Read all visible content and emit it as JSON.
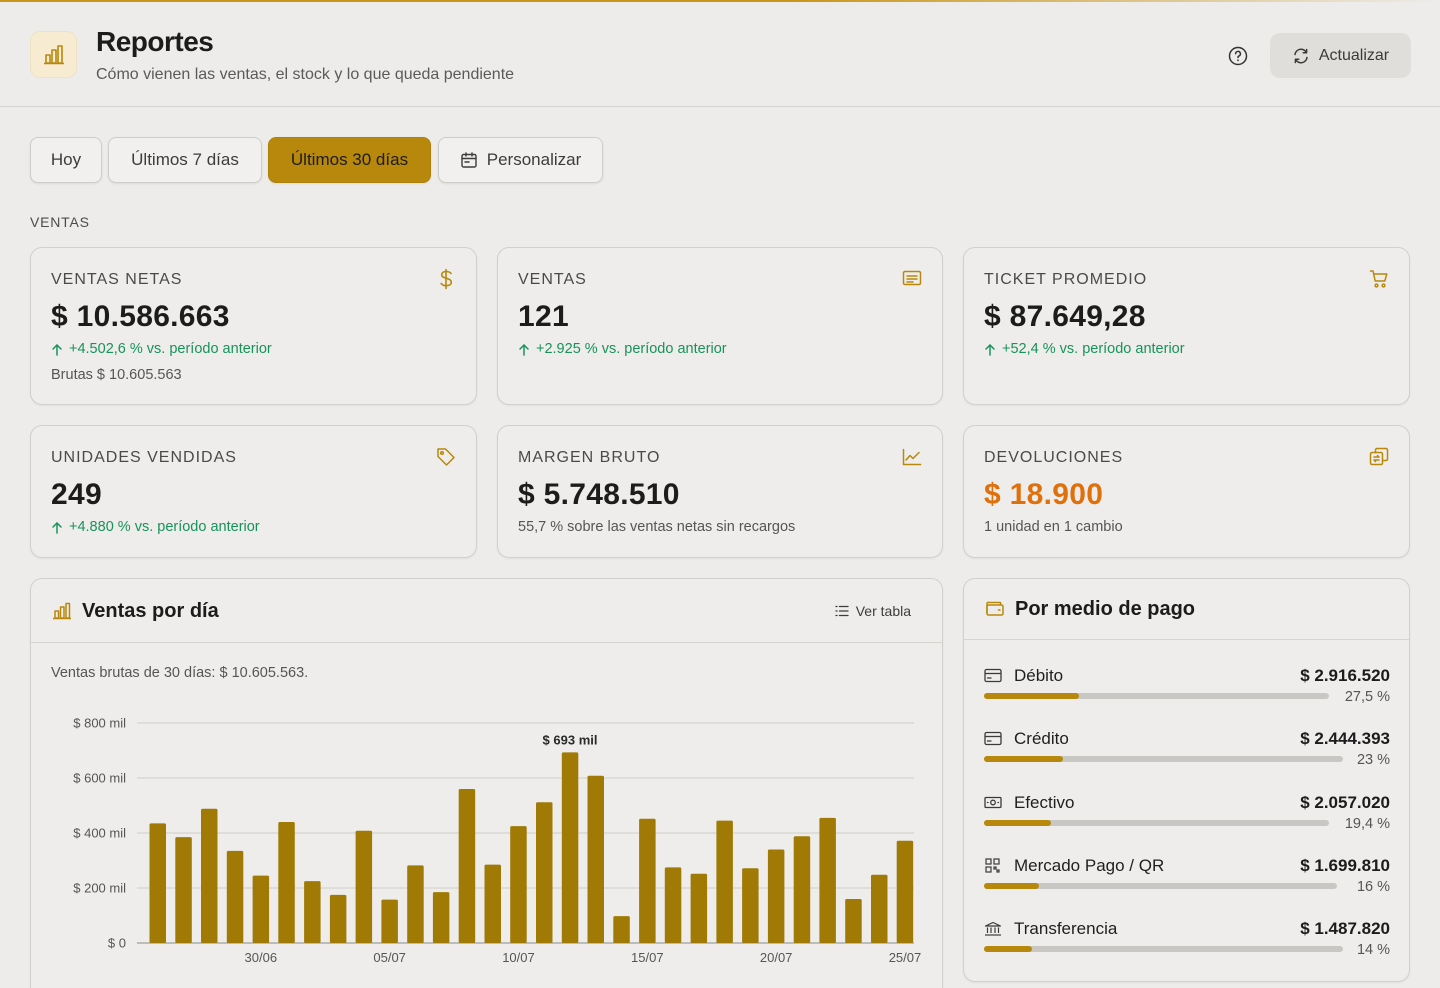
{
  "header": {
    "title": "Reportes",
    "subtitle": "Cómo vienen las ventas, el stock y lo que queda pendiente",
    "refresh_label": "Actualizar"
  },
  "accent": "#b8880c",
  "ranges": [
    "Hoy",
    "Últimos 7 días",
    "Últimos 30 días",
    "Personalizar"
  ],
  "active_range": "Últimos 30 días",
  "section_label": "VENTAS",
  "kpis": {
    "ventas_netas": {
      "label": "VENTAS NETAS",
      "value": "$ 10.586.663",
      "delta": "+4.502,6 % vs. período anterior",
      "note": "Brutas $ 10.605.563",
      "icon": "dollar-icon"
    },
    "ventas": {
      "label": "VENTAS",
      "value": "121",
      "delta": "+2.925 % vs. período anterior",
      "icon": "receipt-icon"
    },
    "ticket": {
      "label": "TICKET PROMEDIO",
      "value": "$ 87.649,28",
      "delta": "+52,4 % vs. período anterior",
      "icon": "cart-icon"
    },
    "unidades": {
      "label": "UNIDADES VENDIDAS",
      "value": "249",
      "delta": "+4.880 % vs. período anterior",
      "icon": "tag-icon"
    },
    "margen": {
      "label": "MARGEN BRUTO",
      "value": "$ 5.748.510",
      "note": "55,7 % sobre las ventas netas sin recargos",
      "icon": "trend-chart-icon"
    },
    "devoluciones": {
      "label": "DEVOLUCIONES",
      "value": "$ 18.900",
      "note": "1 unidad en 1 cambio",
      "icon": "exchange-icon",
      "value_color": "#e0700c"
    }
  },
  "sales_panel": {
    "title": "Ventas por día",
    "ver_tabla": "Ver tabla",
    "note": "Ventas brutas de 30 días: $ 10.605.563.",
    "peak_label": "$ 693 mil"
  },
  "chart_data": {
    "type": "bar",
    "title": "Ventas por día",
    "ylim": [
      0,
      800
    ],
    "yunit": "mil",
    "yticks": [
      "$ 0",
      "$ 200 mil",
      "$ 400 mil",
      "$ 600 mil",
      "$ 800 mil"
    ],
    "ytick_values": [
      0,
      200,
      400,
      600,
      800
    ],
    "xtick_labels": [
      "30/06",
      "05/07",
      "10/07",
      "15/07",
      "20/07",
      "25/07"
    ],
    "categories": [
      "26/06",
      "27/06",
      "28/06",
      "29/06",
      "30/06",
      "01/07",
      "02/07",
      "03/07",
      "04/07",
      "05/07",
      "06/07",
      "07/07",
      "08/07",
      "09/07",
      "10/07",
      "11/07",
      "12/07",
      "13/07",
      "14/07",
      "15/07",
      "16/07",
      "17/07",
      "18/07",
      "19/07",
      "20/07",
      "21/07",
      "22/07",
      "23/07",
      "24/07",
      "25/07"
    ],
    "values": [
      435,
      385,
      488,
      335,
      245,
      440,
      225,
      175,
      408,
      158,
      282,
      185,
      560,
      285,
      425,
      512,
      693,
      608,
      98,
      452,
      275,
      252,
      445,
      272,
      340,
      388,
      455,
      160,
      248,
      372
    ],
    "bar_color": "#a07a05",
    "grid": true
  },
  "payments": {
    "title": "Por medio de pago",
    "items": [
      {
        "name": "Débito",
        "amount": "$ 2.916.520",
        "pct_label": "27,5 %",
        "pct": 27.5,
        "icon": "card-icon"
      },
      {
        "name": "Crédito",
        "amount": "$ 2.444.393",
        "pct_label": "23 %",
        "pct": 23,
        "icon": "card-icon"
      },
      {
        "name": "Efectivo",
        "amount": "$ 2.057.020",
        "pct_label": "19,4 %",
        "pct": 19.4,
        "icon": "cash-icon"
      },
      {
        "name": "Mercado Pago / QR",
        "amount": "$ 1.699.810",
        "pct_label": "16 %",
        "pct": 16,
        "icon": "qr-icon"
      },
      {
        "name": "Transferencia",
        "amount": "$ 1.487.820",
        "pct_label": "14 %",
        "pct": 14,
        "icon": "bank-icon"
      }
    ]
  }
}
